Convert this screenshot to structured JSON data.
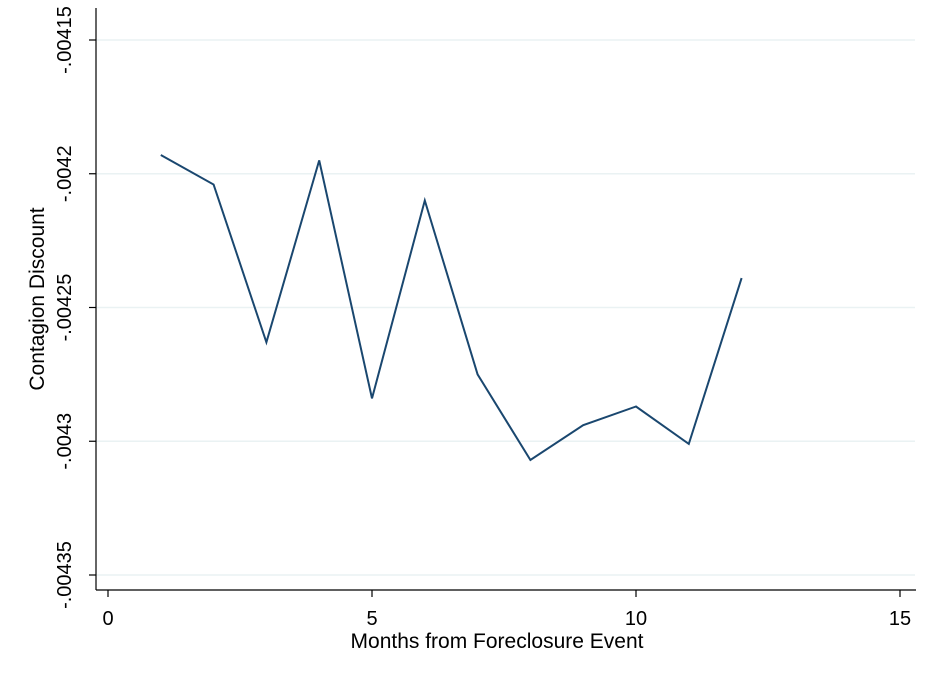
{
  "chart_data": {
    "type": "line",
    "title": "",
    "xlabel": "Months from Foreclosure Event",
    "ylabel": "Contagion Discount",
    "xlim": [
      0,
      15
    ],
    "ylim": [
      -0.00435,
      -0.00415
    ],
    "x_ticks": [
      0,
      5,
      10,
      15
    ],
    "x_tick_labels": [
      "0",
      "5",
      "10",
      "15"
    ],
    "y_ticks": [
      -0.00435,
      -0.0043,
      -0.00425,
      -0.0042,
      -0.00415
    ],
    "y_tick_labels": [
      "-.00435",
      "-.0043",
      "-.00425",
      "-.0042",
      "-.00415"
    ],
    "grid": true,
    "legend": "none",
    "line_color": "#1a476f",
    "grid_color": "#eaf2f3",
    "series": [
      {
        "x": [
          1,
          2,
          3,
          4,
          5,
          6,
          7,
          8,
          9,
          10,
          11,
          12
        ],
        "y": [
          -0.004193,
          -0.004204,
          -0.004263,
          -0.004195,
          -0.004284,
          -0.00421,
          -0.004275,
          -0.004307,
          -0.004294,
          -0.004287,
          -0.004301,
          -0.004239
        ]
      }
    ]
  }
}
